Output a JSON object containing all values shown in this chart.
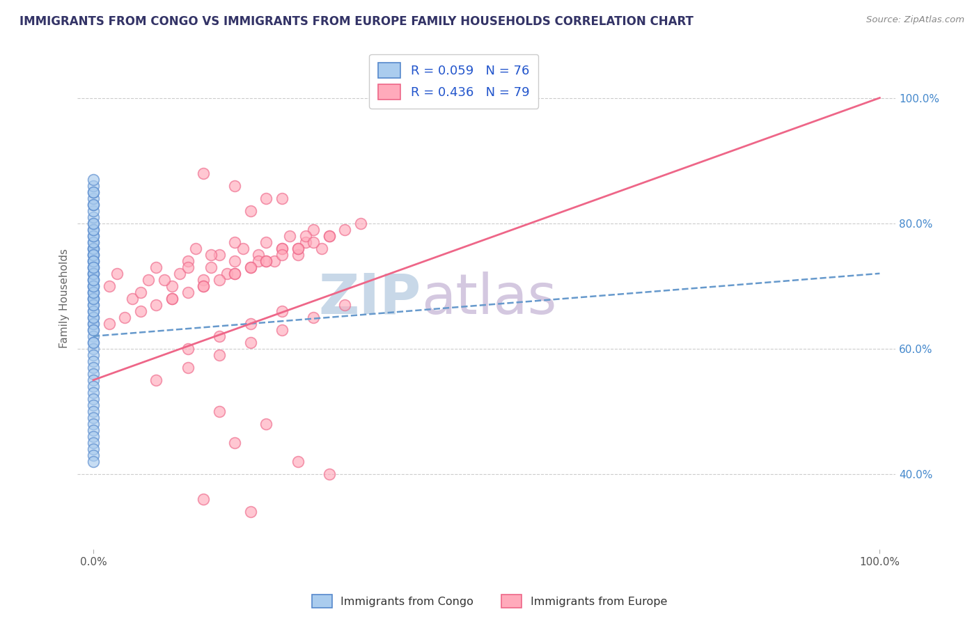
{
  "title": "IMMIGRANTS FROM CONGO VS IMMIGRANTS FROM EUROPE FAMILY HOUSEHOLDS CORRELATION CHART",
  "source_text": "Source: ZipAtlas.com",
  "ylabel": "Family Households",
  "legend_blue_label": "Immigrants from Congo",
  "legend_pink_label": "Immigrants from Europe",
  "blue_R": "R = 0.059",
  "blue_N": "N = 76",
  "pink_R": "R = 0.436",
  "pink_N": "N = 79",
  "background_color": "#ffffff",
  "blue_face": "#aaccee",
  "blue_edge": "#5588cc",
  "pink_face": "#ffaabb",
  "pink_edge": "#ee6688",
  "blue_line_color": "#6699cc",
  "pink_line_color": "#ee6688",
  "grid_color": "#cccccc",
  "right_tick_color": "#4488cc",
  "title_color": "#333366",
  "ylabel_color": "#666666",
  "watermark_zip_color": "#c8d8e8",
  "watermark_atlas_color": "#d4c8e0",
  "blue_scatter_x": [
    0.0,
    0.0,
    0.0,
    0.0,
    0.0,
    0.0,
    0.0,
    0.0,
    0.0,
    0.0,
    0.0,
    0.0,
    0.0,
    0.0,
    0.0,
    0.0,
    0.0,
    0.0,
    0.0,
    0.0,
    0.0,
    0.0,
    0.0,
    0.0,
    0.0,
    0.0,
    0.0,
    0.0,
    0.0,
    0.0,
    0.0,
    0.0,
    0.0,
    0.0,
    0.0,
    0.0,
    0.0,
    0.0,
    0.0,
    0.0,
    0.0,
    0.0,
    0.0,
    0.0,
    0.0,
    0.0,
    0.0,
    0.0,
    0.0,
    0.0,
    0.0,
    0.0,
    0.0,
    0.0,
    0.0,
    0.0,
    0.0,
    0.0,
    0.0,
    0.0,
    0.0,
    0.0,
    0.0,
    0.0,
    0.0,
    0.0,
    0.0,
    0.0,
    0.0,
    0.0,
    0.0,
    0.0,
    0.0,
    0.0,
    0.0,
    0.0
  ],
  "blue_scatter_y": [
    0.75,
    0.76,
    0.74,
    0.73,
    0.72,
    0.71,
    0.7,
    0.69,
    0.68,
    0.77,
    0.76,
    0.75,
    0.74,
    0.73,
    0.72,
    0.71,
    0.7,
    0.69,
    0.68,
    0.67,
    0.66,
    0.65,
    0.64,
    0.63,
    0.62,
    0.61,
    0.78,
    0.79,
    0.8,
    0.81,
    0.82,
    0.83,
    0.84,
    0.85,
    0.86,
    0.6,
    0.59,
    0.58,
    0.57,
    0.56,
    0.55,
    0.54,
    0.53,
    0.52,
    0.51,
    0.5,
    0.49,
    0.48,
    0.47,
    0.46,
    0.45,
    0.44,
    0.43,
    0.42,
    0.64,
    0.65,
    0.66,
    0.67,
    0.68,
    0.76,
    0.75,
    0.77,
    0.69,
    0.7,
    0.72,
    0.74,
    0.73,
    0.71,
    0.78,
    0.79,
    0.8,
    0.61,
    0.63,
    0.83,
    0.85,
    0.87
  ],
  "pink_scatter_x": [
    0.02,
    0.03,
    0.05,
    0.07,
    0.08,
    0.1,
    0.11,
    0.12,
    0.13,
    0.14,
    0.15,
    0.16,
    0.17,
    0.18,
    0.19,
    0.2,
    0.21,
    0.22,
    0.23,
    0.24,
    0.25,
    0.26,
    0.27,
    0.28,
    0.29,
    0.3,
    0.06,
    0.09,
    0.12,
    0.15,
    0.18,
    0.21,
    0.24,
    0.27,
    0.04,
    0.08,
    0.12,
    0.16,
    0.2,
    0.24,
    0.28,
    0.32,
    0.1,
    0.14,
    0.18,
    0.22,
    0.26,
    0.3,
    0.34,
    0.02,
    0.06,
    0.1,
    0.14,
    0.18,
    0.22,
    0.26,
    0.14,
    0.18,
    0.22,
    0.12,
    0.16,
    0.2,
    0.24,
    0.08,
    0.12,
    0.16,
    0.2,
    0.24,
    0.28,
    0.32,
    0.2,
    0.24,
    0.16,
    0.22,
    0.18,
    0.26,
    0.3,
    0.14,
    0.2
  ],
  "pink_scatter_y": [
    0.7,
    0.72,
    0.68,
    0.71,
    0.73,
    0.7,
    0.72,
    0.74,
    0.76,
    0.71,
    0.73,
    0.75,
    0.72,
    0.74,
    0.76,
    0.73,
    0.75,
    0.77,
    0.74,
    0.76,
    0.78,
    0.75,
    0.77,
    0.79,
    0.76,
    0.78,
    0.69,
    0.71,
    0.73,
    0.75,
    0.77,
    0.74,
    0.76,
    0.78,
    0.65,
    0.67,
    0.69,
    0.71,
    0.73,
    0.75,
    0.77,
    0.79,
    0.68,
    0.7,
    0.72,
    0.74,
    0.76,
    0.78,
    0.8,
    0.64,
    0.66,
    0.68,
    0.7,
    0.72,
    0.74,
    0.76,
    0.88,
    0.86,
    0.84,
    0.6,
    0.62,
    0.64,
    0.66,
    0.55,
    0.57,
    0.59,
    0.61,
    0.63,
    0.65,
    0.67,
    0.82,
    0.84,
    0.5,
    0.48,
    0.45,
    0.42,
    0.4,
    0.36,
    0.34
  ],
  "blue_trend_x0": 0.0,
  "blue_trend_x1": 1.0,
  "blue_trend_y0": 0.62,
  "blue_trend_y1": 0.72,
  "pink_trend_x0": 0.0,
  "pink_trend_x1": 1.0,
  "pink_trend_y0": 0.55,
  "pink_trend_y1": 1.0,
  "xmin": 0.0,
  "xmax": 1.0,
  "ymin": 0.28,
  "ymax": 1.08,
  "yticks_right": [
    0.4,
    0.6,
    0.8,
    1.0
  ],
  "ytick_labels_right": [
    "40.0%",
    "60.0%",
    "80.0%",
    "100.0%"
  ],
  "xtick_positions": [
    0.0,
    1.0
  ],
  "xtick_labels": [
    "0.0%",
    "100.0%"
  ]
}
